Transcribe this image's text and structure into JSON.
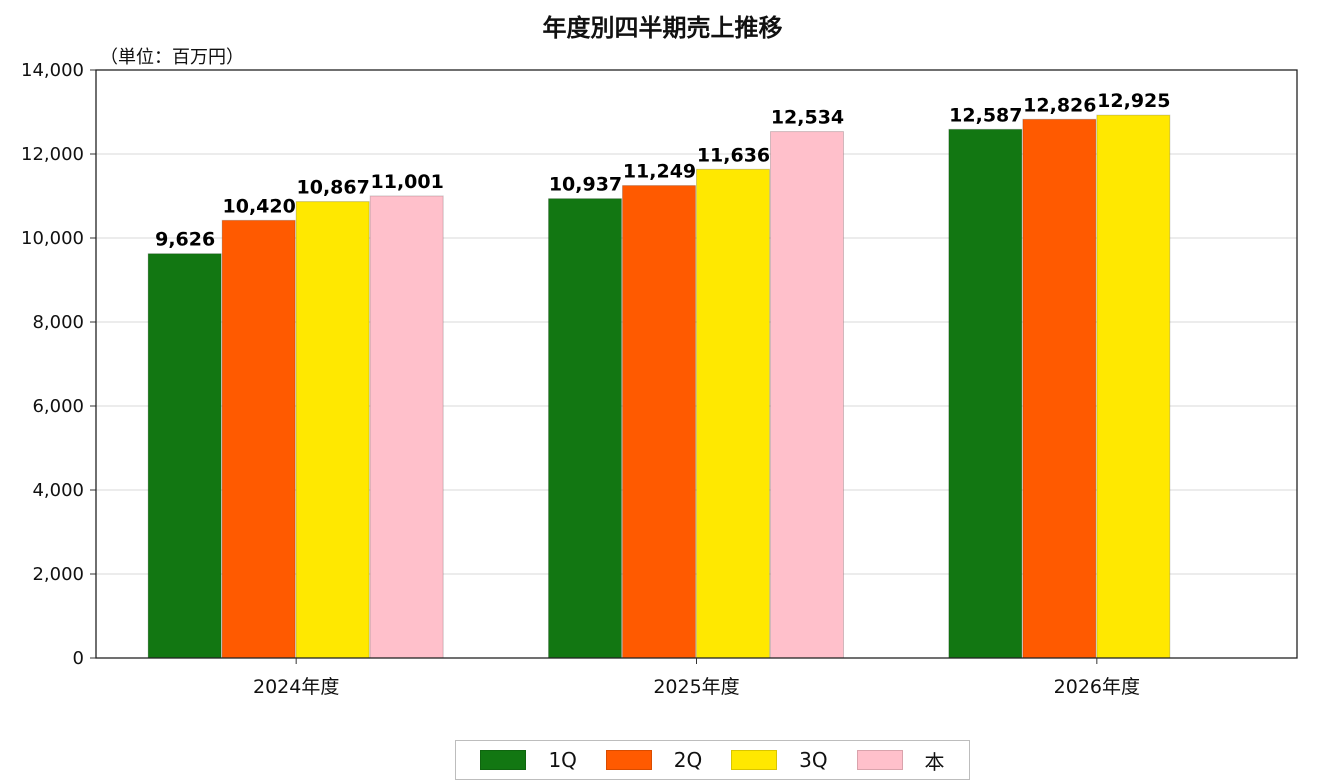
{
  "chart_data": {
    "type": "bar",
    "title": "年度別四半期売上推移",
    "unit_label": "（単位：百万円）",
    "categories": [
      "2024年度",
      "2025年度",
      "2026年度"
    ],
    "series": [
      {
        "name": "1Q",
        "color": "#127712",
        "values": [
          9626,
          10937,
          12587
        ],
        "labels": [
          "9,626",
          "10,937",
          "12,587"
        ]
      },
      {
        "name": "2Q",
        "color": "#ff5a00",
        "values": [
          10420,
          11249,
          12826
        ],
        "labels": [
          "10,420",
          "11,249",
          "12,826"
        ]
      },
      {
        "name": "3Q",
        "color": "#ffe800",
        "values": [
          10867,
          11636,
          12925
        ],
        "labels": [
          "10,867",
          "11,636",
          "12,925"
        ]
      },
      {
        "name": "本",
        "color": "#ffc0cb",
        "values": [
          11001,
          12534,
          null
        ],
        "labels": [
          "11,001",
          "12,534",
          null
        ]
      }
    ],
    "ylim": [
      0,
      14000
    ],
    "yticks": [
      0,
      2000,
      4000,
      6000,
      8000,
      10000,
      12000,
      14000
    ],
    "ytick_labels": [
      "0",
      "2,000",
      "4,000",
      "6,000",
      "8,000",
      "10,000",
      "12,000",
      "14,000"
    ],
    "grid": true,
    "legend_position": "bottom-center"
  }
}
